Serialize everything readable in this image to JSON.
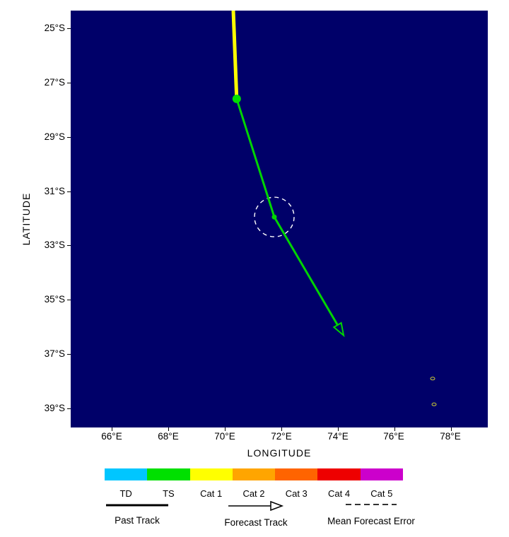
{
  "axes": {
    "x_title": "LONGITUDE",
    "y_title": "LATITUDE",
    "x_tick_labels": [
      "66°E",
      "68°E",
      "70°E",
      "72°E",
      "74°E",
      "76°E",
      "78°E"
    ],
    "y_tick_labels": [
      "25°S",
      "27°S",
      "29°S",
      "31°S",
      "33°S",
      "35°S",
      "37°S",
      "39°S"
    ],
    "x_tick_values": [
      66,
      68,
      70,
      72,
      74,
      76,
      78
    ],
    "y_tick_values": [
      25,
      27,
      29,
      31,
      33,
      35,
      37,
      39
    ]
  },
  "colors": {
    "map_background": "#000069",
    "past_track_line": "#FFFF00",
    "forecast_line": "#00D400",
    "position_dot": "#00E000",
    "error_circle": "#FFFFFF",
    "island_outline": "#CCCC33",
    "legend_sample_line": "#000000",
    "error_sample_dash": "#333333"
  },
  "legend": {
    "categories": [
      {
        "label": "TD",
        "color": "#00C6FF"
      },
      {
        "label": "TS",
        "color": "#00E000"
      },
      {
        "label": "Cat 1",
        "color": "#FFFF00"
      },
      {
        "label": "Cat 2",
        "color": "#FFA500"
      },
      {
        "label": "Cat 3",
        "color": "#FF6400"
      },
      {
        "label": "Cat 4",
        "color": "#EE0000"
      },
      {
        "label": "Cat 5",
        "color": "#CC00CC"
      }
    ],
    "items": {
      "past_track": "Past Track",
      "forecast_track": "Forecast Track",
      "mean_forecast_error": "Mean Forecast Error"
    }
  },
  "chart_data": {
    "type": "map-track",
    "x_axis": "LONGITUDE",
    "y_axis": "LATITUDE",
    "lon_range_deg_e": [
      64.55,
      79.3
    ],
    "lat_range_deg_s": [
      24.35,
      39.7
    ],
    "past_track": [
      {
        "lon": 70.3,
        "lat": 24.35
      },
      {
        "lon": 70.42,
        "lat": 27.6
      }
    ],
    "past_track_intensity": "Cat 1",
    "current_position": {
      "lon": 70.42,
      "lat": 27.6,
      "intensity": "TS"
    },
    "forecast_track": [
      {
        "lon": 70.42,
        "lat": 27.6
      },
      {
        "lon": 71.75,
        "lat": 31.95
      },
      {
        "lon": 74.0,
        "lat": 35.95
      }
    ],
    "forecast_points": [
      {
        "lon": 71.75,
        "lat": 31.95,
        "mean_error_deg": 0.7
      }
    ],
    "islands": [
      {
        "lon": 77.35,
        "lat": 37.9
      },
      {
        "lon": 77.4,
        "lat": 38.85
      }
    ]
  }
}
